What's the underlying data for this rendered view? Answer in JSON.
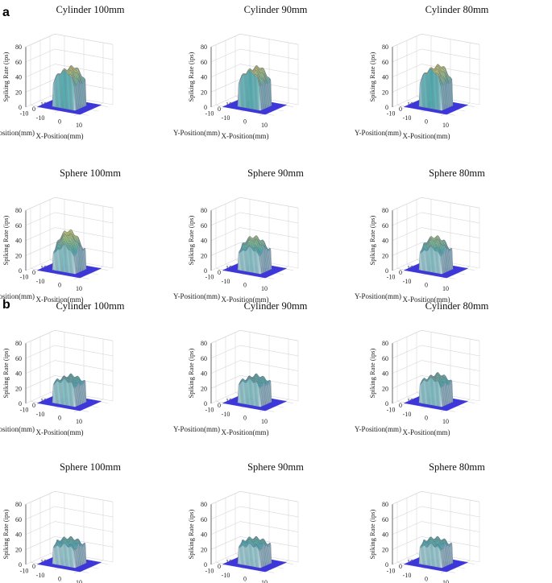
{
  "figure": {
    "panel_labels": [
      "a",
      "b"
    ],
    "zlabel": "Spiking Rate (ips)",
    "xlabel": "X-Position(mm)",
    "ylabel": "Y-Position(mm)",
    "ztick_labels": [
      "0",
      "20",
      "40",
      "60",
      "80"
    ],
    "xtick_labels": [
      "-10",
      "0",
      "10"
    ],
    "ytick_labels": [
      "-10",
      "0",
      "10"
    ]
  },
  "colors": {
    "base": "#3d37d9",
    "low": "#ffffff",
    "mid": "#3fb8b0",
    "high": "#f5e04a",
    "grid": "#d8d8d8",
    "axis": "#333333"
  },
  "chart_data": [
    {
      "type": "surface",
      "panel": "a",
      "title": "Cylinder 100mm",
      "zlim": [
        0,
        80
      ],
      "xlim": [
        -15,
        15
      ],
      "ylim": [
        -15,
        15
      ],
      "plateau_range": [
        -5,
        5
      ],
      "peak": 50,
      "plateau": 30,
      "shape": "cylinder"
    },
    {
      "type": "surface",
      "panel": "a",
      "title": "Cylinder 90mm",
      "zlim": [
        0,
        80
      ],
      "xlim": [
        -15,
        15
      ],
      "ylim": [
        -15,
        15
      ],
      "plateau_range": [
        -5,
        5
      ],
      "peak": 50,
      "plateau": 30,
      "shape": "cylinder"
    },
    {
      "type": "surface",
      "panel": "a",
      "title": "Cylinder 80mm",
      "zlim": [
        0,
        80
      ],
      "xlim": [
        -15,
        15
      ],
      "ylim": [
        -15,
        15
      ],
      "plateau_range": [
        -5,
        5
      ],
      "peak": 52,
      "plateau": 30,
      "shape": "cylinder"
    },
    {
      "type": "surface",
      "panel": "a",
      "title": "Sphere 100mm",
      "zlim": [
        0,
        80
      ],
      "xlim": [
        -15,
        15
      ],
      "ylim": [
        -15,
        15
      ],
      "plateau_range": [
        -5,
        5
      ],
      "peak": 50,
      "plateau": 25,
      "shape": "sphere"
    },
    {
      "type": "surface",
      "panel": "a",
      "title": "Sphere 90mm",
      "zlim": [
        0,
        80
      ],
      "xlim": [
        -15,
        15
      ],
      "ylim": [
        -15,
        15
      ],
      "plateau_range": [
        -5,
        5
      ],
      "peak": 42,
      "plateau": 25,
      "shape": "sphere"
    },
    {
      "type": "surface",
      "panel": "a",
      "title": "Sphere 80mm",
      "zlim": [
        0,
        80
      ],
      "xlim": [
        -15,
        15
      ],
      "ylim": [
        -15,
        15
      ],
      "plateau_range": [
        -5,
        5
      ],
      "peak": 42,
      "plateau": 25,
      "shape": "sphere"
    },
    {
      "type": "surface",
      "panel": "b",
      "title": "Cylinder 100mm",
      "zlim": [
        0,
        80
      ],
      "xlim": [
        -15,
        15
      ],
      "ylim": [
        -15,
        15
      ],
      "plateau_range": [
        -5,
        5
      ],
      "peak": 32,
      "plateau": 25,
      "shape": "cylinder"
    },
    {
      "type": "surface",
      "panel": "b",
      "title": "Cylinder 90mm",
      "zlim": [
        0,
        80
      ],
      "xlim": [
        -15,
        15
      ],
      "ylim": [
        -15,
        15
      ],
      "plateau_range": [
        -5,
        5
      ],
      "peak": 32,
      "plateau": 25,
      "shape": "cylinder"
    },
    {
      "type": "surface",
      "panel": "b",
      "title": "Cylinder 80mm",
      "zlim": [
        0,
        80
      ],
      "xlim": [
        -15,
        15
      ],
      "ylim": [
        -15,
        15
      ],
      "plateau_range": [
        -5,
        5
      ],
      "peak": 34,
      "plateau": 25,
      "shape": "cylinder"
    },
    {
      "type": "surface",
      "panel": "b",
      "title": "Sphere 100mm",
      "zlim": [
        0,
        80
      ],
      "xlim": [
        -15,
        15
      ],
      "ylim": [
        -15,
        15
      ],
      "plateau_range": [
        -5,
        5
      ],
      "peak": 32,
      "plateau": 24,
      "shape": "sphere"
    },
    {
      "type": "surface",
      "panel": "b",
      "title": "Sphere 90mm",
      "zlim": [
        0,
        80
      ],
      "xlim": [
        -15,
        15
      ],
      "ylim": [
        -15,
        15
      ],
      "plateau_range": [
        -5,
        5
      ],
      "peak": 32,
      "plateau": 24,
      "shape": "sphere"
    },
    {
      "type": "surface",
      "panel": "b",
      "title": "Sphere 80mm",
      "zlim": [
        0,
        80
      ],
      "xlim": [
        -15,
        15
      ],
      "ylim": [
        -15,
        15
      ],
      "plateau_range": [
        -5,
        5
      ],
      "peak": 32,
      "plateau": 24,
      "shape": "sphere"
    }
  ]
}
